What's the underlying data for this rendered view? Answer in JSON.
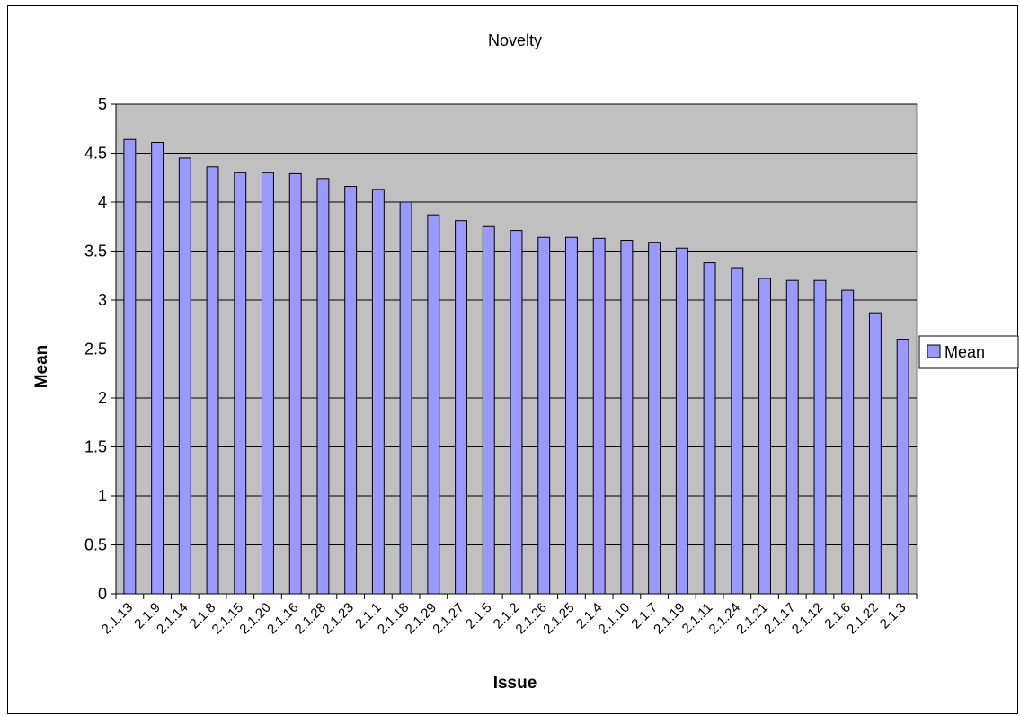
{
  "chart_data": {
    "type": "bar",
    "title": "Novelty",
    "xlabel": "Issue",
    "ylabel": "Mean",
    "ylim": [
      0,
      5
    ],
    "yticks": [
      0,
      0.5,
      1,
      1.5,
      2,
      2.5,
      3,
      3.5,
      4,
      4.5,
      5
    ],
    "grid": true,
    "legend_position": "right",
    "categories": [
      "2.1.13",
      "2.1.9",
      "2.1.14",
      "2.1.8",
      "2.1.15",
      "2.1.20",
      "2.1.16",
      "2.1.28",
      "2.1.23",
      "2.1.1",
      "2.1.18",
      "2.1.29",
      "2.1.27",
      "2.1.5",
      "2.1.2",
      "2.1.26",
      "2.1.25",
      "2.1.4",
      "2.1.10",
      "2.1.7",
      "2.1.19",
      "2.1.11",
      "2.1.24",
      "2.1.21",
      "2.1.17",
      "2.1.12",
      "2.1.6",
      "2.1.22",
      "2.1.3"
    ],
    "series": [
      {
        "name": "Mean",
        "color": "#9999ff",
        "values": [
          4.64,
          4.61,
          4.45,
          4.36,
          4.3,
          4.3,
          4.29,
          4.24,
          4.16,
          4.13,
          4.0,
          3.87,
          3.81,
          3.75,
          3.71,
          3.64,
          3.64,
          3.63,
          3.61,
          3.59,
          3.53,
          3.38,
          3.33,
          3.22,
          3.2,
          3.2,
          3.1,
          2.87,
          2.6
        ]
      }
    ],
    "plot_background": "#c0c0c0"
  }
}
